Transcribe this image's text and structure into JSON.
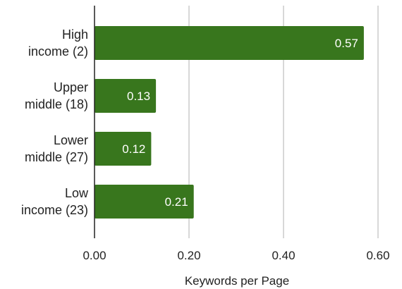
{
  "chart_data": {
    "type": "bar",
    "orientation": "horizontal",
    "categories": [
      [
        "High",
        "income (2)"
      ],
      [
        "Upper",
        "middle (18)"
      ],
      [
        "Lower",
        "middle (27)"
      ],
      [
        "Low",
        "income (23)"
      ]
    ],
    "values": [
      0.57,
      0.13,
      0.12,
      0.21
    ],
    "value_labels": [
      "0.57",
      "0.13",
      "0.12",
      "0.21"
    ],
    "title": "",
    "xlabel": "Keywords per Page",
    "ylabel": "",
    "xlim": [
      0,
      0.6
    ],
    "xticks": [
      0,
      0.2,
      0.4,
      0.6
    ],
    "xtick_labels": [
      "0.00",
      "0.20",
      "0.40",
      "0.60"
    ],
    "grid": true,
    "bar_color": "#38761d",
    "grid_color": "#cccccc",
    "axis_color": "#222222"
  }
}
